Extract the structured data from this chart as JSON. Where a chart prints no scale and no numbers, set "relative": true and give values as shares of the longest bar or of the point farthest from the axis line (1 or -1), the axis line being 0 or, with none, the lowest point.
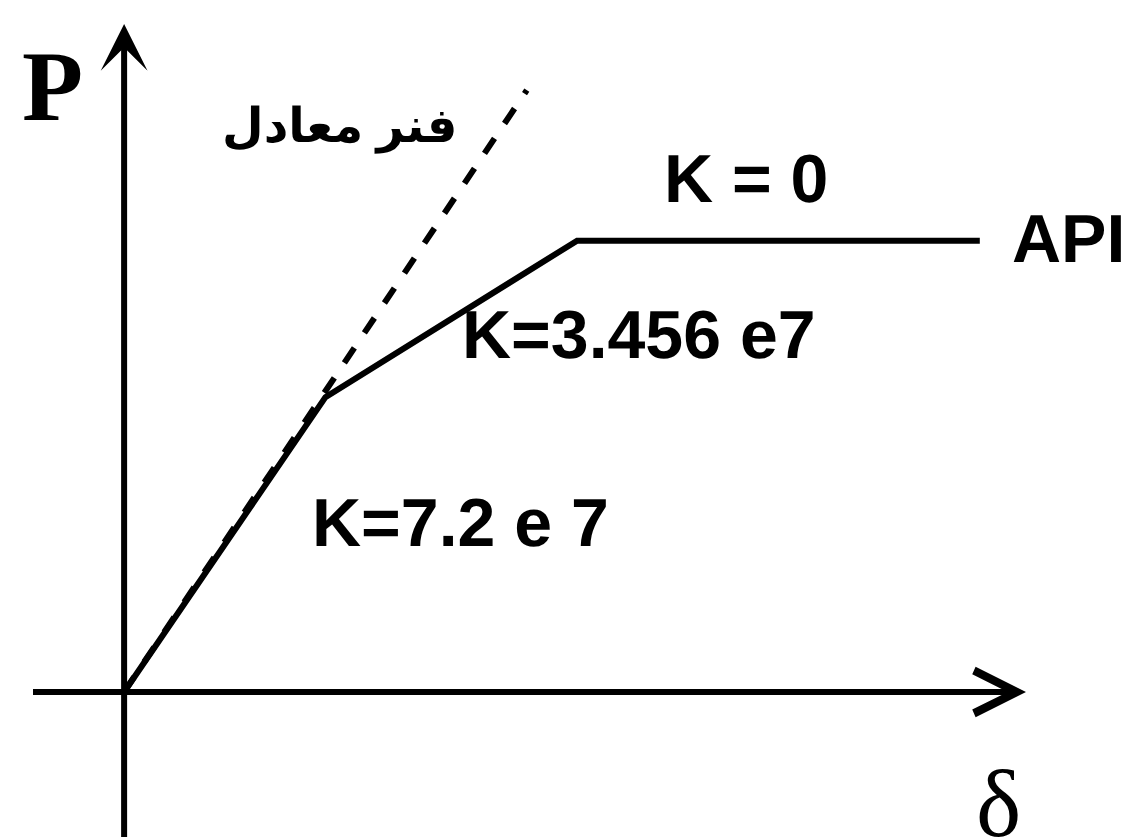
{
  "chart_data": {
    "type": "line",
    "relative": true,
    "xlabel": "δ",
    "ylabel": "P",
    "categories": [
      null,
      null,
      null,
      null,
      null,
      null,
      null,
      null,
      null,
      null,
      null,
      null,
      null,
      null,
      null,
      null,
      null,
      null
    ],
    "series": [
      {
        "name": "API",
        "color": "#000000",
        "values": [
          0,
          null,
          null,
          null,
          0.49,
          null,
          null,
          null,
          null,
          0.75,
          null,
          null,
          null,
          null,
          null,
          null,
          null,
          0.75
        ]
      },
      {
        "name": "فنر معادل",
        "color": "#000000",
        "line_style": "dashed",
        "values": [
          0,
          null,
          null,
          null,
          null,
          null,
          null,
          null,
          1.0,
          null,
          null,
          null,
          null,
          null,
          null,
          null,
          null,
          null
        ]
      }
    ],
    "annotations": [
      "K = 0",
      "K=3.456 e7",
      "K=7.2 e 7"
    ],
    "legend": false,
    "marker": "none",
    "line_style": "solid"
  }
}
